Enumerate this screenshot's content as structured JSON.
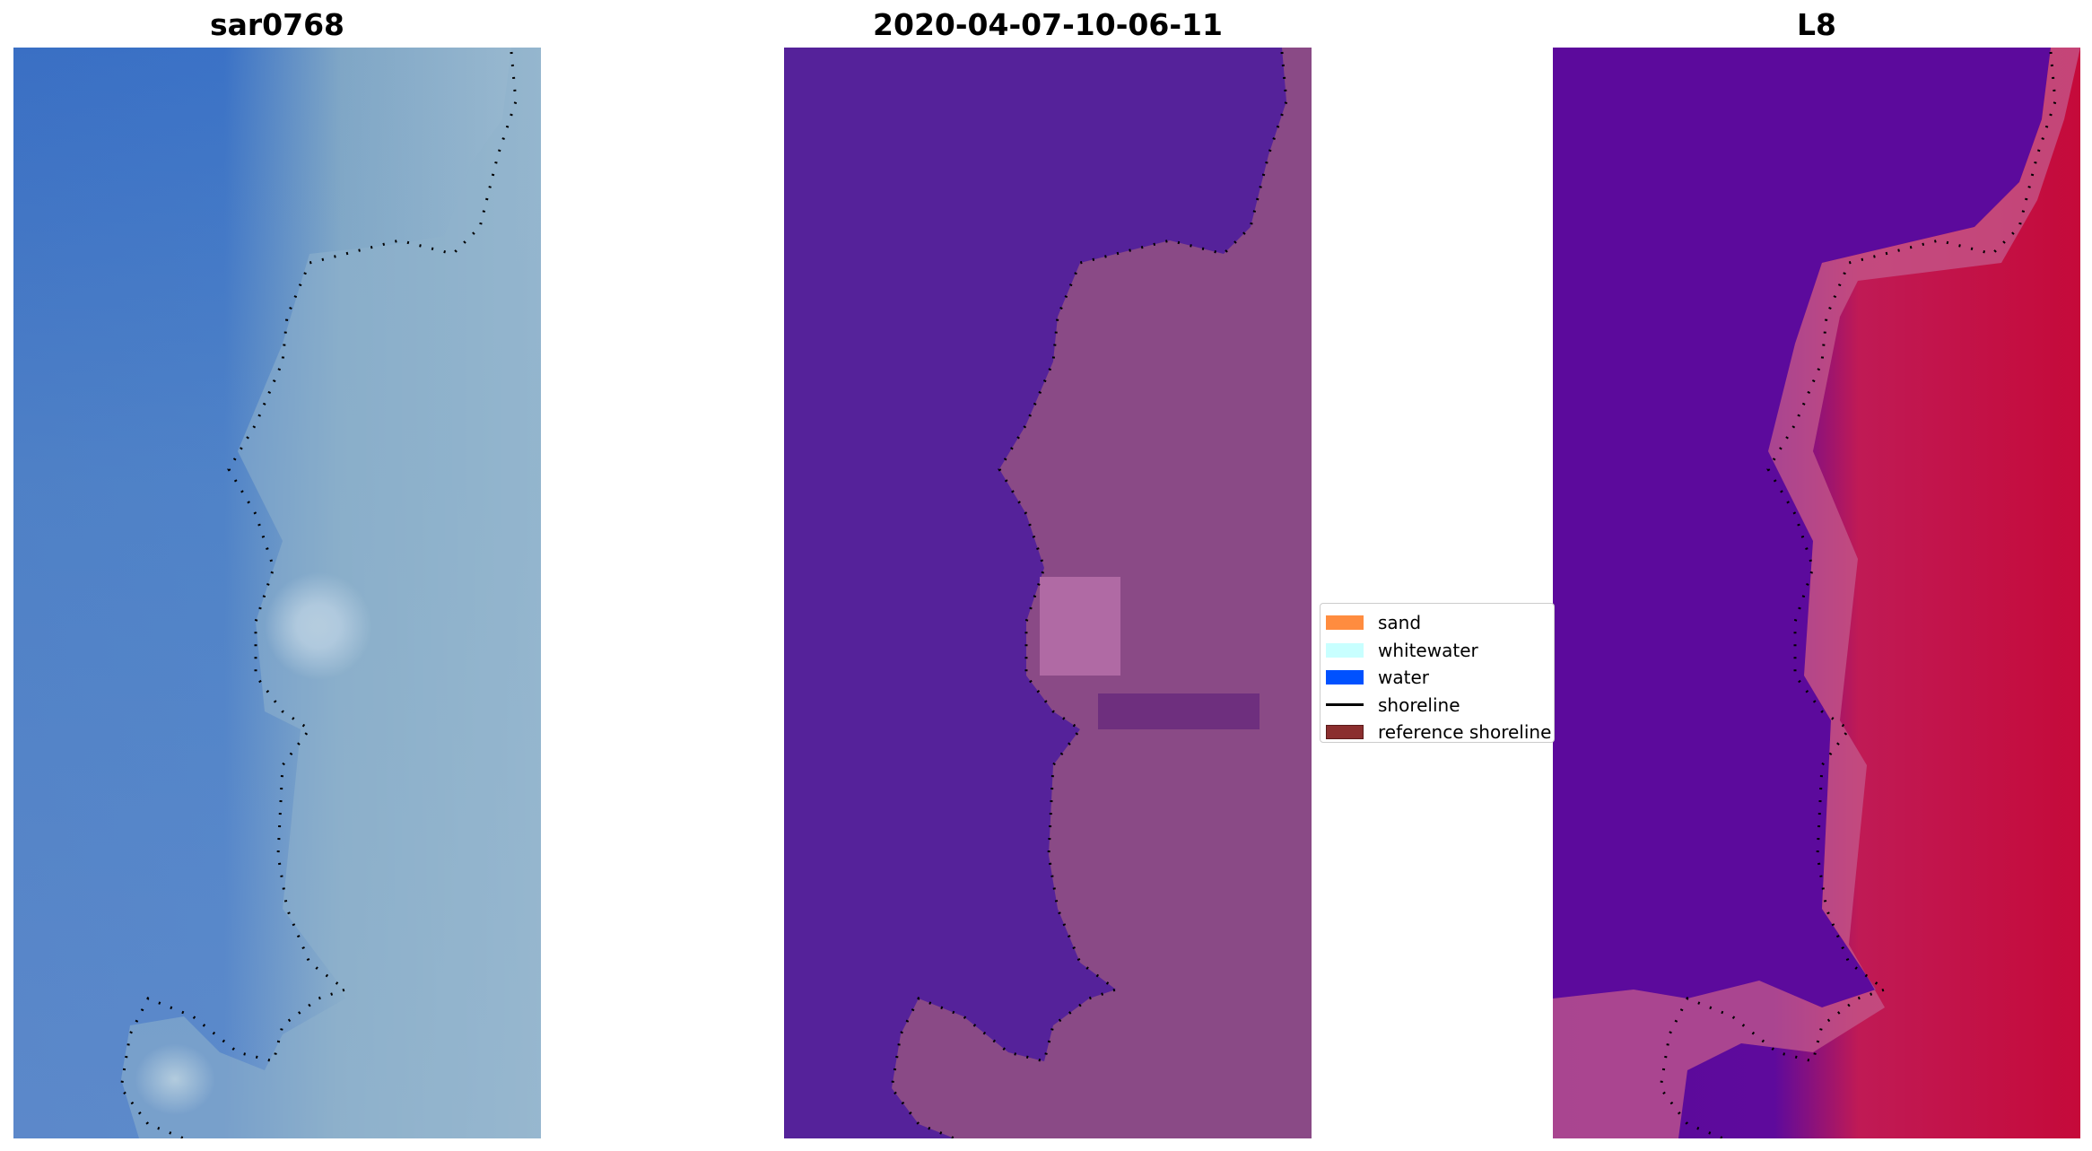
{
  "panels": [
    {
      "title": "sar0768"
    },
    {
      "title": "2020-04-07-10-06-11"
    },
    {
      "title": "L8"
    }
  ],
  "legend": {
    "items": [
      {
        "label": "sand",
        "color": "#ff8c3f",
        "kind": "patch"
      },
      {
        "label": "whitewater",
        "color": "#c8ffff",
        "kind": "patch"
      },
      {
        "label": "water",
        "color": "#0051ff",
        "kind": "patch"
      },
      {
        "label": "shoreline",
        "color": "#000000",
        "kind": "line"
      },
      {
        "label": "reference shoreline",
        "color": "#8b2e2e",
        "kind": "patch"
      }
    ]
  },
  "colors": {
    "water_class": "#55229a",
    "land_class": "#8a4a86",
    "rgb_water": "#3b72c6",
    "ndwi_water": "#5e0a9c",
    "ndwi_land": "#c50a3a"
  }
}
